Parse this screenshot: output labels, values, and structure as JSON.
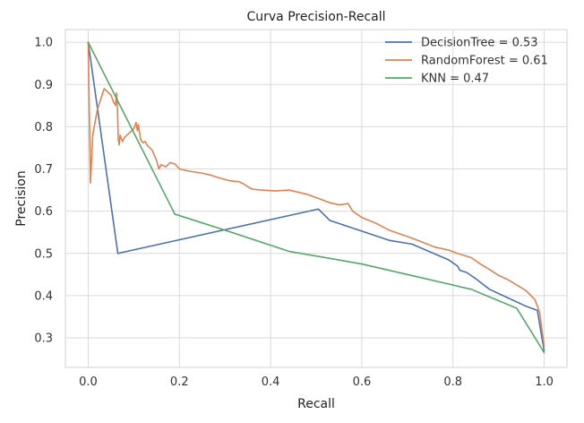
{
  "chart_data": {
    "type": "line",
    "title": "Curva Precision-Recall",
    "xlabel": "Recall",
    "ylabel": "Precision",
    "xlim": [
      -0.05,
      1.05
    ],
    "ylim": [
      0.23,
      1.03
    ],
    "xticks": [
      0.0,
      0.2,
      0.4,
      0.6,
      0.8,
      1.0
    ],
    "yticks": [
      0.3,
      0.4,
      0.5,
      0.6,
      0.7,
      0.8,
      0.9,
      1.0
    ],
    "xtick_labels": [
      "0.0",
      "0.2",
      "0.4",
      "0.6",
      "0.8",
      "1.0"
    ],
    "ytick_labels": [
      "0.3",
      "0.4",
      "0.5",
      "0.6",
      "0.7",
      "0.8",
      "0.9",
      "1.0"
    ],
    "grid": true,
    "legend_position": "top-right",
    "series": [
      {
        "name": "DecisionTree = 0.53",
        "color": "#4c72b0",
        "points": [
          [
            0.0,
            1.0
          ],
          [
            0.065,
            0.5
          ],
          [
            0.505,
            0.605
          ],
          [
            0.53,
            0.578
          ],
          [
            0.58,
            0.56
          ],
          [
            0.66,
            0.531
          ],
          [
            0.71,
            0.522
          ],
          [
            0.79,
            0.485
          ],
          [
            0.81,
            0.47
          ],
          [
            0.815,
            0.46
          ],
          [
            0.83,
            0.455
          ],
          [
            0.85,
            0.44
          ],
          [
            0.88,
            0.415
          ],
          [
            0.92,
            0.395
          ],
          [
            0.96,
            0.375
          ],
          [
            0.985,
            0.365
          ],
          [
            0.995,
            0.3
          ],
          [
            1.0,
            0.27
          ]
        ]
      },
      {
        "name": "RandomForest = 0.61",
        "color": "#dd8452",
        "points": [
          [
            0.0,
            1.0
          ],
          [
            0.005,
            0.667
          ],
          [
            0.01,
            0.78
          ],
          [
            0.02,
            0.84
          ],
          [
            0.035,
            0.89
          ],
          [
            0.05,
            0.875
          ],
          [
            0.055,
            0.86
          ],
          [
            0.06,
            0.85
          ],
          [
            0.062,
            0.88
          ],
          [
            0.064,
            0.85
          ],
          [
            0.066,
            0.77
          ],
          [
            0.068,
            0.757
          ],
          [
            0.07,
            0.78
          ],
          [
            0.075,
            0.765
          ],
          [
            0.08,
            0.775
          ],
          [
            0.09,
            0.785
          ],
          [
            0.1,
            0.795
          ],
          [
            0.105,
            0.81
          ],
          [
            0.108,
            0.79
          ],
          [
            0.11,
            0.805
          ],
          [
            0.115,
            0.77
          ],
          [
            0.12,
            0.762
          ],
          [
            0.125,
            0.765
          ],
          [
            0.13,
            0.755
          ],
          [
            0.14,
            0.745
          ],
          [
            0.15,
            0.72
          ],
          [
            0.155,
            0.7
          ],
          [
            0.16,
            0.71
          ],
          [
            0.17,
            0.705
          ],
          [
            0.18,
            0.715
          ],
          [
            0.19,
            0.712
          ],
          [
            0.2,
            0.7
          ],
          [
            0.22,
            0.695
          ],
          [
            0.25,
            0.69
          ],
          [
            0.27,
            0.685
          ],
          [
            0.29,
            0.678
          ],
          [
            0.31,
            0.672
          ],
          [
            0.33,
            0.67
          ],
          [
            0.34,
            0.665
          ],
          [
            0.35,
            0.658
          ],
          [
            0.36,
            0.652
          ],
          [
            0.38,
            0.65
          ],
          [
            0.41,
            0.648
          ],
          [
            0.44,
            0.65
          ],
          [
            0.46,
            0.645
          ],
          [
            0.48,
            0.64
          ],
          [
            0.5,
            0.632
          ],
          [
            0.53,
            0.62
          ],
          [
            0.55,
            0.615
          ],
          [
            0.57,
            0.618
          ],
          [
            0.58,
            0.6
          ],
          [
            0.6,
            0.585
          ],
          [
            0.63,
            0.572
          ],
          [
            0.66,
            0.555
          ],
          [
            0.7,
            0.54
          ],
          [
            0.73,
            0.528
          ],
          [
            0.76,
            0.515
          ],
          [
            0.79,
            0.508
          ],
          [
            0.81,
            0.5
          ],
          [
            0.84,
            0.49
          ],
          [
            0.86,
            0.475
          ],
          [
            0.88,
            0.462
          ],
          [
            0.9,
            0.448
          ],
          [
            0.92,
            0.438
          ],
          [
            0.94,
            0.425
          ],
          [
            0.96,
            0.412
          ],
          [
            0.98,
            0.39
          ],
          [
            0.99,
            0.36
          ],
          [
            1.0,
            0.28
          ]
        ]
      },
      {
        "name": "KNN = 0.47",
        "color": "#55a868",
        "points": [
          [
            0.0,
            1.0
          ],
          [
            0.19,
            0.593
          ],
          [
            0.3,
            0.555
          ],
          [
            0.44,
            0.505
          ],
          [
            0.6,
            0.475
          ],
          [
            0.7,
            0.45
          ],
          [
            0.84,
            0.415
          ],
          [
            0.94,
            0.37
          ],
          [
            1.0,
            0.265
          ]
        ]
      }
    ]
  }
}
